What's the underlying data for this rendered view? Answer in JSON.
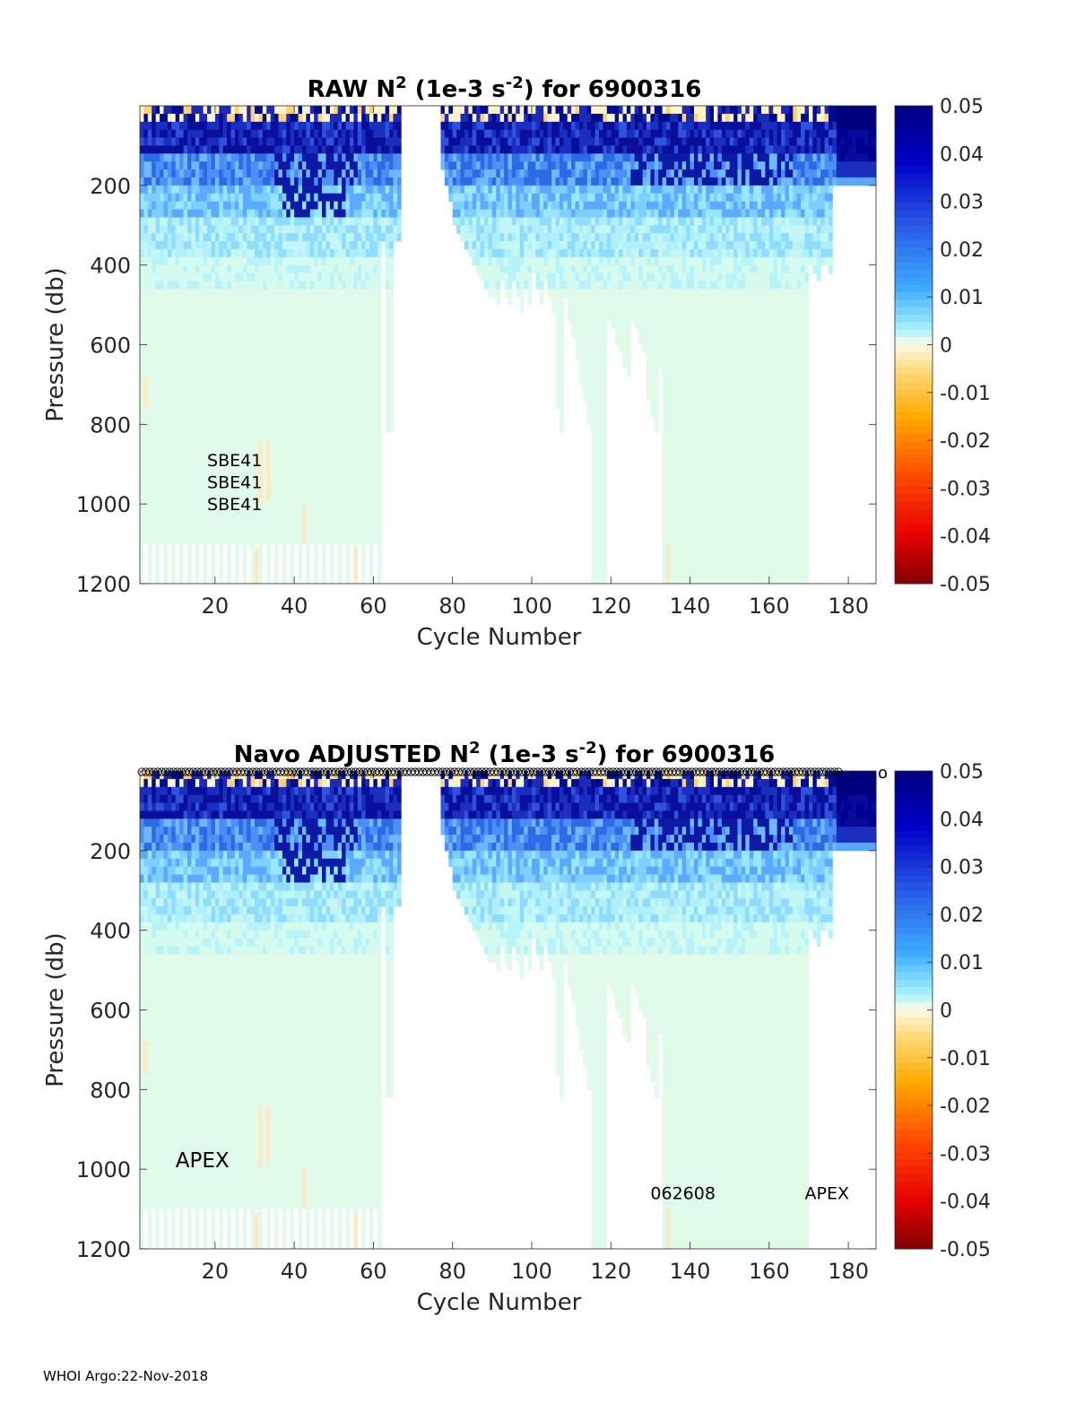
{
  "chart_data": [
    {
      "type": "heatmap",
      "title_prefix": "RAW N",
      "title_sup1": "2",
      "title_mid": " (1e-3 s",
      "title_sup2": "-2",
      "title_suffix": ") for 6900316",
      "xlabel": "Cycle Number",
      "ylabel": "Pressure (db)",
      "xlim": [
        1,
        187
      ],
      "ylim": [
        1200,
        0
      ],
      "xticks": [
        20,
        40,
        60,
        80,
        100,
        120,
        140,
        160,
        180
      ],
      "yticks": [
        200,
        400,
        600,
        800,
        1000,
        1200
      ],
      "colorbar": {
        "min": -0.05,
        "max": 0.05,
        "ticks": [
          "0.05",
          "0.04",
          "0.03",
          "0.02",
          "0.01",
          "0",
          "-0.01",
          "-0.02",
          "-0.03",
          "-0.04",
          "-0.05"
        ]
      },
      "annotations": [
        {
          "text": "SBE41",
          "x": 18,
          "p": 905
        },
        {
          "text": "SBE41",
          "x": 18,
          "p": 960
        },
        {
          "text": "SBE41",
          "x": 18,
          "p": 1015
        }
      ],
      "top_markers": false
    },
    {
      "type": "heatmap",
      "title_prefix": "Navo  ADJUSTED N",
      "title_sup1": "2",
      "title_mid": " (1e-3 s",
      "title_sup2": "-2",
      "title_suffix": ") for 6900316",
      "xlabel": "Cycle Number",
      "ylabel": "Pressure (db)",
      "xlim": [
        1,
        187
      ],
      "ylim": [
        1200,
        0
      ],
      "xticks": [
        20,
        40,
        60,
        80,
        100,
        120,
        140,
        160,
        180
      ],
      "yticks": [
        200,
        400,
        600,
        800,
        1000,
        1200
      ],
      "colorbar": {
        "min": -0.05,
        "max": 0.05,
        "ticks": [
          "0.05",
          "0.04",
          "0.03",
          "0.02",
          "0.01",
          "0",
          "-0.01",
          "-0.02",
          "-0.03",
          "-0.04",
          "-0.05"
        ]
      },
      "annotations": [
        {
          "text": "APEX",
          "x": 10,
          "p": 995,
          "big": true
        },
        {
          "text": "062608",
          "x": 130,
          "p": 1075
        },
        {
          "text": "APEX",
          "x": 169,
          "p": 1075
        }
      ],
      "top_markers": true,
      "marker_symbol": "o"
    }
  ],
  "footer": {
    "text": "WHOI Argo:22-Nov-2018"
  }
}
